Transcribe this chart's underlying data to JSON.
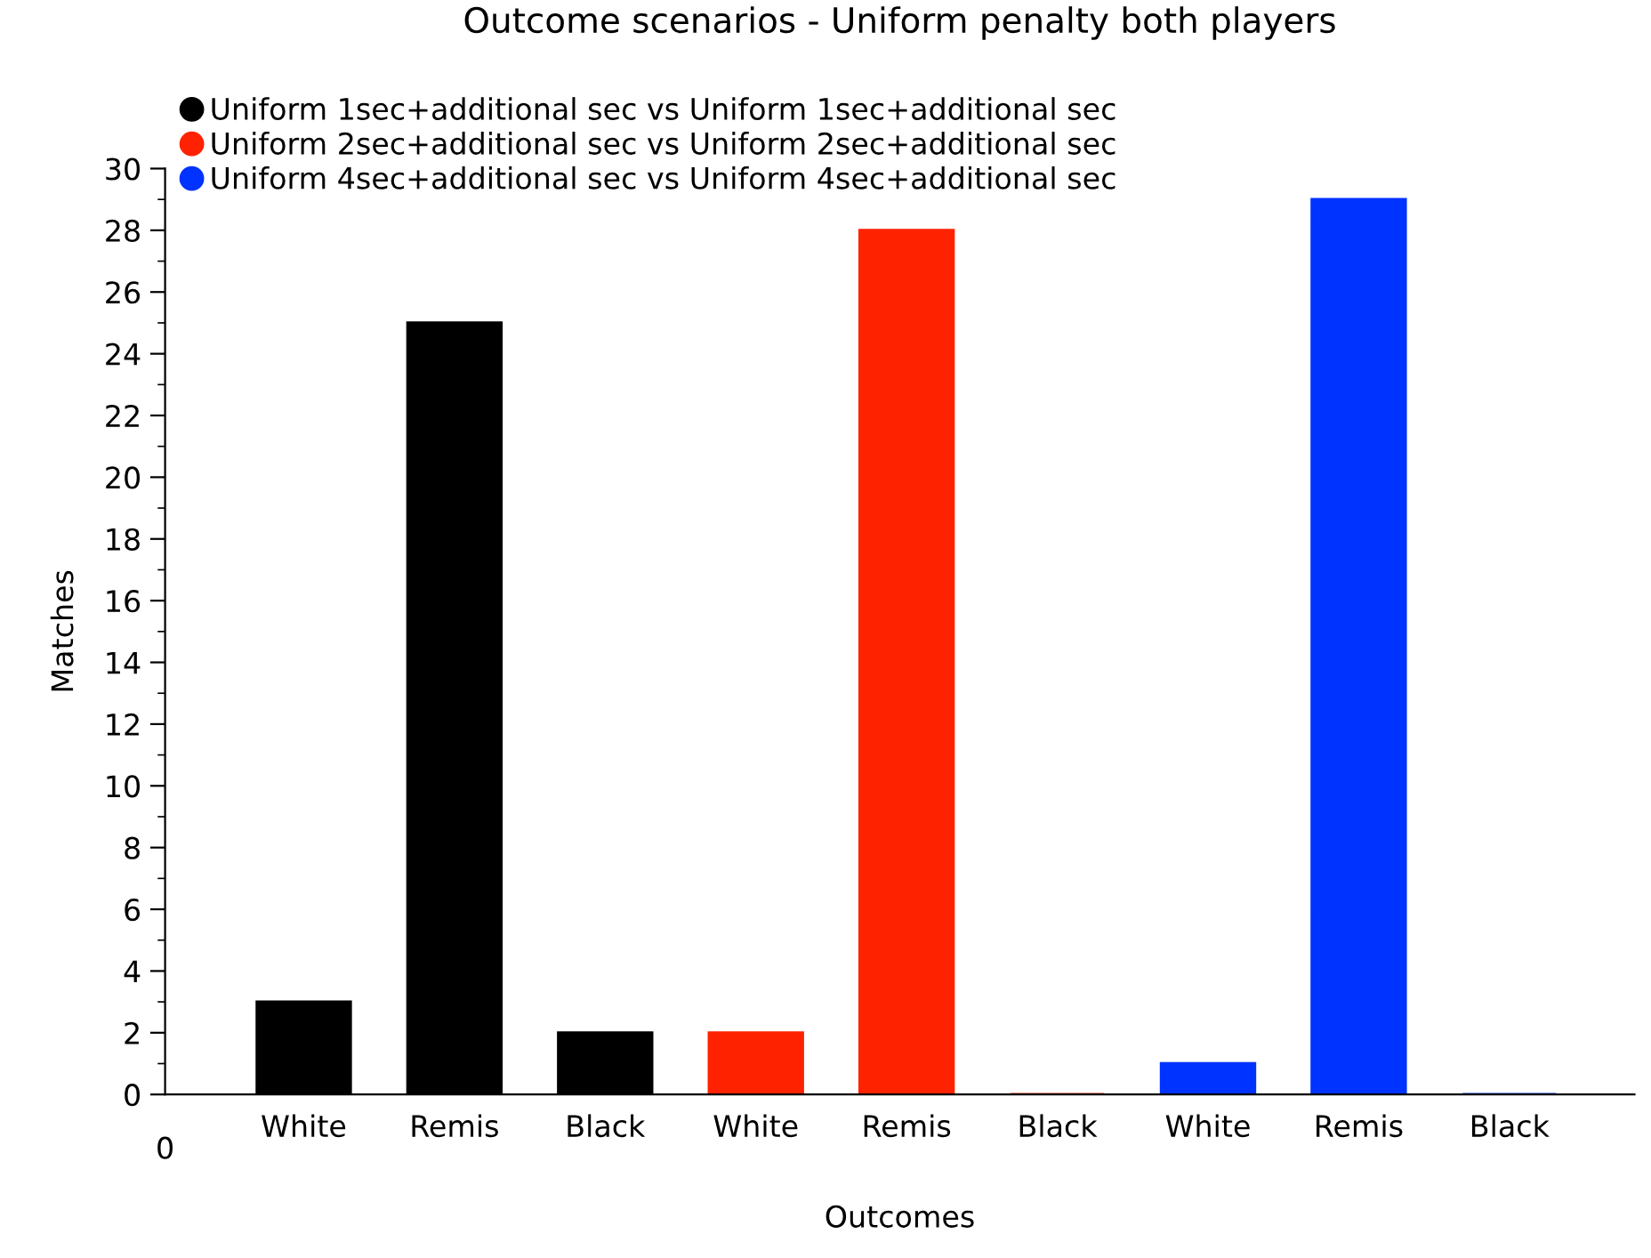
{
  "chart_data": {
    "type": "bar",
    "title": "Outcome scenarios - Uniform penalty both players",
    "xlabel": "Outcomes",
    "ylabel": "Matches",
    "categories": [
      "White",
      "Remis",
      "Black",
      "White",
      "Remis",
      "Black",
      "White",
      "Remis",
      "Black"
    ],
    "series": [
      {
        "name": "Uniform 1sec+additional sec vs Uniform 1sec+additional sec",
        "color": "#000000",
        "values": [
          3,
          25,
          2,
          null,
          null,
          null,
          null,
          null,
          null
        ]
      },
      {
        "name": "Uniform 2sec+additional sec vs Uniform 2sec+additional sec",
        "color": "#ff2200",
        "values": [
          null,
          null,
          null,
          2,
          28,
          0,
          null,
          null,
          null
        ]
      },
      {
        "name": "Uniform 4sec+additional sec vs Uniform 4sec+additional sec",
        "color": "#0033ff",
        "values": [
          null,
          null,
          null,
          null,
          null,
          null,
          1,
          29,
          0
        ]
      }
    ],
    "annotations": [
      "0"
    ],
    "ylim": [
      0,
      30
    ],
    "yticks": [
      0,
      2,
      4,
      6,
      8,
      10,
      12,
      14,
      16,
      18,
      20,
      22,
      24,
      26,
      28,
      30
    ],
    "grid": false,
    "legend": "top left"
  }
}
